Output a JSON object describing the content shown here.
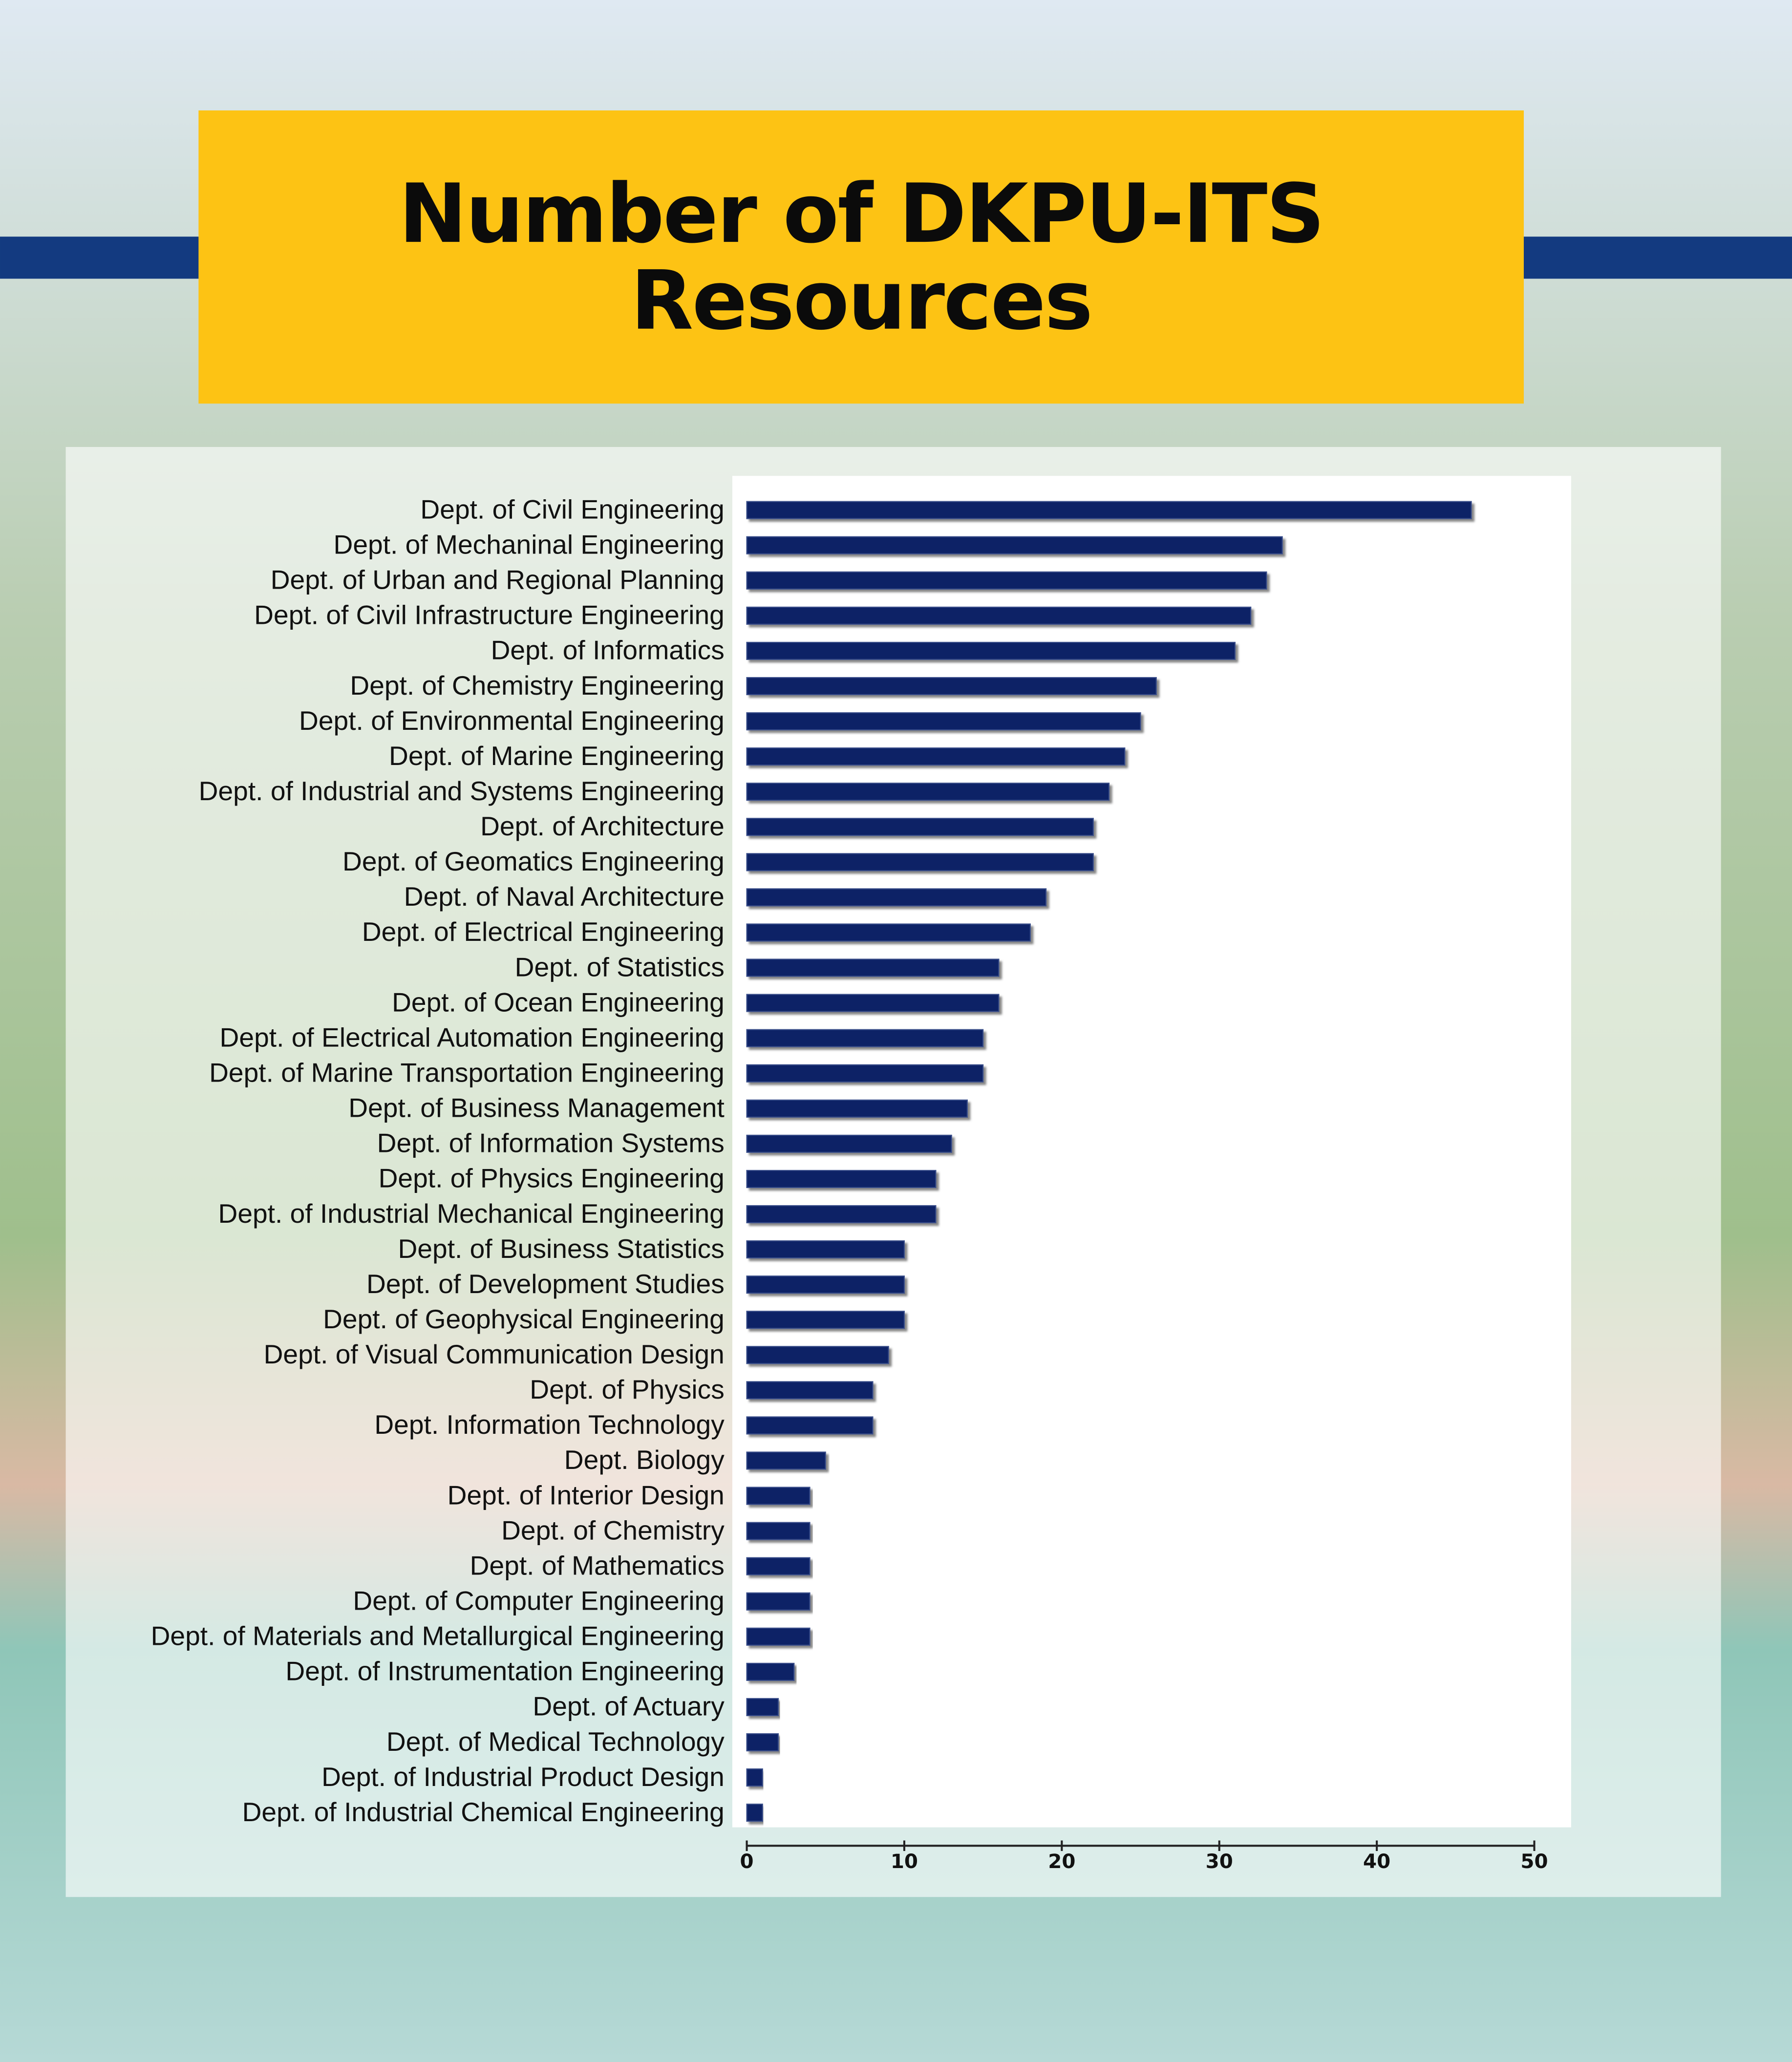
{
  "chart_data": {
    "type": "bar",
    "orientation": "horizontal",
    "title": "Number of DKPU-ITS Resources",
    "categories": [
      "Dept. of Civil Engineering",
      "Dept. of Mechaninal Engineering",
      "Dept. of Urban and Regional Planning",
      "Dept. of Civil Infrastructure Engineering",
      "Dept. of Informatics",
      "Dept. of Chemistry Engineering",
      "Dept. of Environmental Engineering",
      "Dept. of Marine Engineering",
      "Dept. of Industrial and Systems Engineering",
      "Dept. of Architecture",
      "Dept. of Geomatics Engineering",
      "Dept. of Naval Architecture",
      "Dept. of Electrical Engineering",
      "Dept. of Statistics",
      "Dept. of Ocean Engineering",
      "Dept. of Electrical Automation Engineering",
      "Dept. of Marine Transportation Engineering",
      "Dept. of Business Management",
      "Dept. of Information Systems",
      "Dept. of Physics Engineering",
      "Dept. of Industrial Mechanical Engineering",
      "Dept. of Business Statistics",
      "Dept. of Development Studies",
      "Dept. of Geophysical Engineering",
      "Dept. of Visual Communication Design",
      "Dept. of Physics",
      "Dept. Information Technology",
      "Dept. Biology",
      "Dept. of Interior Design",
      "Dept. of Chemistry",
      "Dept. of Mathematics",
      "Dept. of Computer Engineering",
      "Dept. of Materials and Metallurgical Engineering",
      "Dept. of Instrumentation Engineering",
      "Dept. of Actuary",
      "Dept. of Medical Technology",
      "Dept. of Industrial Product Design",
      "Dept. of Industrial Chemical Engineering"
    ],
    "values": [
      46,
      34,
      33,
      32,
      31,
      26,
      25,
      24,
      23,
      22,
      22,
      19,
      18,
      16,
      16,
      15,
      15,
      14,
      13,
      12,
      12,
      10,
      10,
      10,
      9,
      8,
      8,
      5,
      4,
      4,
      4,
      4,
      4,
      3,
      2,
      2,
      1,
      1
    ],
    "color": "#0c2266",
    "xlim": [
      0,
      50
    ],
    "xticks": [
      0,
      10,
      20,
      30,
      40,
      50
    ]
  }
}
